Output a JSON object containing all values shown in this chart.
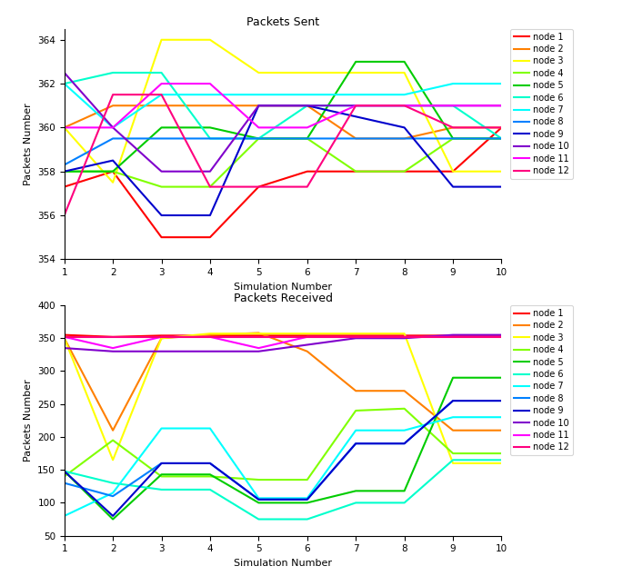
{
  "nodes": [
    "node 1",
    "node 2",
    "node 3",
    "node 4",
    "node 5",
    "node 6",
    "node 7",
    "node 8",
    "node 9",
    "node 10",
    "node 11",
    "node 12"
  ],
  "colors": [
    "#ff0000",
    "#ff8000",
    "#ffff00",
    "#80ff00",
    "#00cc00",
    "#00ffcc",
    "#00ffff",
    "#0080ff",
    "#0000cc",
    "#8000cc",
    "#ff00ff",
    "#ff007f"
  ],
  "x": [
    1,
    2,
    3,
    4,
    5,
    6,
    7,
    8,
    9,
    10
  ],
  "sent": {
    "node1": [
      357.3,
      358.0,
      355.0,
      355.0,
      357.3,
      358.0,
      358.0,
      358.0,
      358.0,
      360.0
    ],
    "node2": [
      360.0,
      361.0,
      361.0,
      361.0,
      361.0,
      361.0,
      359.5,
      359.5,
      360.0,
      360.0
    ],
    "node3": [
      360.0,
      357.5,
      364.0,
      364.0,
      362.5,
      362.5,
      362.5,
      362.5,
      358.0,
      358.0
    ],
    "node4": [
      358.0,
      358.0,
      357.3,
      357.3,
      359.5,
      359.5,
      358.0,
      358.0,
      359.5,
      359.5
    ],
    "node5": [
      358.0,
      358.0,
      360.0,
      360.0,
      359.5,
      359.5,
      363.0,
      363.0,
      359.5,
      359.5
    ],
    "node6": [
      362.0,
      362.5,
      362.5,
      359.5,
      359.5,
      361.0,
      361.0,
      361.0,
      361.0,
      359.5
    ],
    "node7": [
      362.0,
      360.0,
      361.5,
      361.5,
      361.5,
      361.5,
      361.5,
      361.5,
      362.0,
      362.0
    ],
    "node8": [
      358.3,
      359.5,
      359.5,
      359.5,
      359.5,
      359.5,
      359.5,
      359.5,
      359.5,
      359.5
    ],
    "node9": [
      358.0,
      358.5,
      356.0,
      356.0,
      361.0,
      361.0,
      360.5,
      360.0,
      357.3,
      357.3
    ],
    "node10": [
      362.5,
      360.0,
      358.0,
      358.0,
      361.0,
      361.0,
      361.0,
      361.0,
      361.0,
      361.0
    ],
    "node11": [
      360.0,
      360.0,
      362.0,
      362.0,
      360.0,
      360.0,
      361.0,
      361.0,
      361.0,
      361.0
    ],
    "node12": [
      356.0,
      361.5,
      361.5,
      357.3,
      357.3,
      357.3,
      361.0,
      361.0,
      360.0,
      360.0
    ]
  },
  "received": {
    "node1": [
      355.0,
      352.0,
      354.0,
      354.0,
      354.0,
      354.0,
      354.0,
      354.0,
      354.0,
      354.0
    ],
    "node2": [
      350.0,
      210.0,
      350.0,
      355.0,
      358.0,
      330.0,
      270.0,
      270.0,
      210.0,
      210.0
    ],
    "node3": [
      350.0,
      165.0,
      350.0,
      357.0,
      357.0,
      357.0,
      357.0,
      357.0,
      160.0,
      160.0
    ],
    "node4": [
      140.0,
      195.0,
      140.0,
      140.0,
      135.0,
      135.0,
      240.0,
      243.0,
      175.0,
      175.0
    ],
    "node5": [
      148.0,
      75.0,
      143.0,
      143.0,
      100.0,
      100.0,
      118.0,
      118.0,
      290.0,
      290.0
    ],
    "node6": [
      148.0,
      130.0,
      120.0,
      120.0,
      75.0,
      75.0,
      100.0,
      100.0,
      165.0,
      165.0
    ],
    "node7": [
      80.0,
      115.0,
      213.0,
      213.0,
      107.0,
      107.0,
      210.0,
      210.0,
      230.0,
      230.0
    ],
    "node8": [
      130.0,
      110.0,
      160.0,
      160.0,
      105.0,
      105.0,
      190.0,
      190.0,
      255.0,
      255.0
    ],
    "node9": [
      148.0,
      80.0,
      160.0,
      160.0,
      105.0,
      105.0,
      190.0,
      190.0,
      255.0,
      255.0
    ],
    "node10": [
      335.0,
      330.0,
      330.0,
      330.0,
      330.0,
      340.0,
      350.0,
      350.0,
      355.0,
      355.0
    ],
    "node11": [
      352.0,
      335.0,
      352.0,
      352.0,
      335.0,
      352.0,
      352.0,
      352.0,
      352.0,
      352.0
    ],
    "node12": [
      352.0,
      352.0,
      352.0,
      352.0,
      352.0,
      352.0,
      352.0,
      352.0,
      352.0,
      352.0
    ]
  },
  "sent_title": "Packets Sent",
  "received_title": "Packets Received",
  "xlabel": "Simulation Number",
  "ylabel": "Packets Number",
  "sent_ylim": [
    354,
    364.5
  ],
  "received_ylim": [
    50,
    400
  ],
  "sent_yticks": [
    354,
    356,
    358,
    360,
    362,
    364
  ],
  "received_yticks": [
    50,
    100,
    150,
    200,
    250,
    300,
    350,
    400
  ],
  "linewidth": 1.5
}
